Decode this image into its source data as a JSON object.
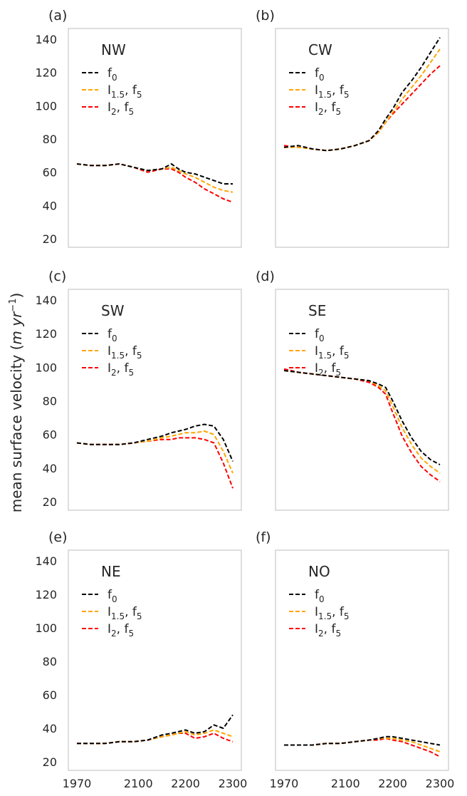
{
  "figure": {
    "ylabel": "mean surface velocity (m yr⁻¹)",
    "ylabel_main": "mean surface velocity (",
    "ylabel_unit": "m yr",
    "ylabel_exp": "−1",
    "ylabel_close": ")"
  },
  "legend": [
    {
      "base": "f",
      "sub": "0",
      "color": "#000000"
    },
    {
      "base": "I",
      "sub": "1.5",
      "mid": ", f",
      "sub2": "5",
      "color": "#ffa500"
    },
    {
      "base": "I",
      "sub": "2",
      "mid": ", f",
      "sub2": "5",
      "color": "#ff0000"
    }
  ],
  "chart_data": [
    {
      "type": "line",
      "panel": "(a)",
      "title": "NW",
      "x": [
        1970,
        2000,
        2030,
        2060,
        2090,
        2120,
        2150,
        2170,
        2185,
        2200,
        2220,
        2240,
        2260,
        2280,
        2300
      ],
      "xlim": [
        1970,
        2300
      ],
      "xticks": [
        1970,
        2100,
        2200,
        2300
      ],
      "ylim": [
        20,
        140
      ],
      "yticks": [
        20,
        40,
        60,
        80,
        100,
        120,
        140
      ],
      "series": [
        {
          "name": "f0",
          "color": "#000000",
          "values": [
            65,
            64,
            64,
            65,
            63,
            61,
            62,
            65,
            62,
            60,
            59,
            57,
            55,
            53,
            53
          ]
        },
        {
          "name": "I1.5, f5",
          "color": "#ffa500",
          "values": [
            65,
            64,
            64,
            65,
            63,
            61,
            62,
            63,
            61,
            59,
            57,
            54,
            51,
            49,
            48
          ]
        },
        {
          "name": "I2, f5",
          "color": "#ff0000",
          "values": [
            65,
            64,
            64,
            65,
            63,
            60,
            62,
            62,
            60,
            57,
            54,
            50,
            47,
            44,
            42
          ]
        }
      ]
    },
    {
      "type": "line",
      "panel": "(b)",
      "title": "CW",
      "x": [
        1970,
        2000,
        2030,
        2060,
        2090,
        2120,
        2150,
        2170,
        2185,
        2200,
        2220,
        2240,
        2260,
        2280,
        2300
      ],
      "xlim": [
        1970,
        2300
      ],
      "xticks": [
        1970,
        2100,
        2200,
        2300
      ],
      "ylim": [
        20,
        140
      ],
      "yticks": [
        20,
        40,
        60,
        80,
        100,
        120,
        140
      ],
      "series": [
        {
          "name": "f0",
          "color": "#000000",
          "values": [
            75,
            76,
            74,
            73,
            74,
            76,
            79,
            85,
            92,
            98,
            108,
            115,
            123,
            132,
            141
          ]
        },
        {
          "name": "I1.5, f5",
          "color": "#ffa500",
          "values": [
            75,
            75,
            74,
            73,
            74,
            76,
            79,
            84,
            90,
            96,
            104,
            111,
            118,
            126,
            134
          ]
        },
        {
          "name": "I2, f5",
          "color": "#ff0000",
          "values": [
            76,
            75,
            74,
            73,
            74,
            76,
            79,
            84,
            90,
            95,
            101,
            107,
            113,
            119,
            124
          ]
        }
      ]
    },
    {
      "type": "line",
      "panel": "(c)",
      "title": "SW",
      "x": [
        1970,
        2000,
        2030,
        2060,
        2090,
        2120,
        2150,
        2170,
        2185,
        2200,
        2220,
        2240,
        2260,
        2280,
        2300
      ],
      "xlim": [
        1970,
        2300
      ],
      "xticks": [
        1970,
        2100,
        2200,
        2300
      ],
      "ylim": [
        20,
        140
      ],
      "yticks": [
        20,
        40,
        60,
        80,
        100,
        120,
        140
      ],
      "series": [
        {
          "name": "f0",
          "color": "#000000",
          "values": [
            55,
            54,
            54,
            54,
            55,
            57,
            59,
            61,
            62,
            63,
            65,
            66,
            65,
            57,
            44
          ]
        },
        {
          "name": "I1.5, f5",
          "color": "#ffa500",
          "values": [
            55,
            54,
            54,
            54,
            55,
            56,
            58,
            59,
            60,
            61,
            61,
            62,
            60,
            50,
            37
          ]
        },
        {
          "name": "I2, f5",
          "color": "#ff0000",
          "values": [
            55,
            54,
            54,
            54,
            55,
            56,
            57,
            57,
            58,
            58,
            58,
            57,
            55,
            43,
            28
          ]
        }
      ]
    },
    {
      "type": "line",
      "panel": "(d)",
      "title": "SE",
      "x": [
        1970,
        2000,
        2030,
        2060,
        2090,
        2120,
        2150,
        2170,
        2185,
        2200,
        2220,
        2240,
        2260,
        2280,
        2300
      ],
      "xlim": [
        1970,
        2300
      ],
      "xticks": [
        1970,
        2100,
        2200,
        2300
      ],
      "ylim": [
        20,
        140
      ],
      "yticks": [
        20,
        40,
        60,
        80,
        100,
        120,
        140
      ],
      "series": [
        {
          "name": "f0",
          "color": "#000000",
          "values": [
            98,
            97,
            96,
            95,
            94,
            93,
            92,
            90,
            88,
            80,
            68,
            58,
            50,
            45,
            42
          ]
        },
        {
          "name": "I1.5, f5",
          "color": "#ffa500",
          "values": [
            98,
            97,
            96,
            95,
            94,
            93,
            92,
            89,
            86,
            77,
            64,
            54,
            46,
            41,
            37
          ]
        },
        {
          "name": "I2, f5",
          "color": "#ff0000",
          "values": [
            99,
            97,
            96,
            95,
            94,
            93,
            91,
            88,
            84,
            73,
            59,
            49,
            41,
            36,
            32
          ]
        }
      ]
    },
    {
      "type": "line",
      "panel": "(e)",
      "title": "NE",
      "x": [
        1970,
        2000,
        2030,
        2060,
        2090,
        2120,
        2150,
        2170,
        2185,
        2200,
        2220,
        2240,
        2260,
        2280,
        2300
      ],
      "xlim": [
        1970,
        2300
      ],
      "xticks": [
        1970,
        2100,
        2200,
        2300
      ],
      "ylim": [
        20,
        140
      ],
      "yticks": [
        20,
        40,
        60,
        80,
        100,
        120,
        140
      ],
      "series": [
        {
          "name": "f0",
          "color": "#000000",
          "values": [
            31,
            31,
            31,
            32,
            32,
            33,
            36,
            37,
            38,
            39,
            37,
            38,
            42,
            40,
            48
          ]
        },
        {
          "name": "I1.5, f5",
          "color": "#ffa500",
          "values": [
            31,
            31,
            31,
            32,
            32,
            33,
            35,
            36,
            37,
            38,
            36,
            37,
            39,
            37,
            35
          ]
        },
        {
          "name": "I2, f5",
          "color": "#ff0000",
          "values": [
            31,
            31,
            31,
            32,
            32,
            33,
            35,
            36,
            37,
            37,
            34,
            35,
            37,
            34,
            32
          ]
        }
      ]
    },
    {
      "type": "line",
      "panel": "(f)",
      "title": "NO",
      "x": [
        1970,
        2000,
        2030,
        2060,
        2090,
        2120,
        2150,
        2170,
        2185,
        2200,
        2220,
        2240,
        2260,
        2280,
        2300
      ],
      "xlim": [
        1970,
        2300
      ],
      "xticks": [
        1970,
        2100,
        2200,
        2300
      ],
      "ylim": [
        20,
        140
      ],
      "yticks": [
        20,
        40,
        60,
        80,
        100,
        120,
        140
      ],
      "series": [
        {
          "name": "f0",
          "color": "#000000",
          "values": [
            30,
            30,
            30,
            31,
            31,
            32,
            33,
            34,
            35,
            35,
            34,
            33,
            32,
            31,
            30
          ]
        },
        {
          "name": "I1.5, f5",
          "color": "#ffa500",
          "values": [
            30,
            30,
            30,
            31,
            31,
            32,
            33,
            34,
            34,
            34,
            33,
            32,
            30,
            28,
            26
          ]
        },
        {
          "name": "I2, f5",
          "color": "#ff0000",
          "values": [
            30,
            30,
            30,
            31,
            31,
            32,
            33,
            33,
            34,
            33,
            32,
            30,
            28,
            26,
            23
          ]
        }
      ]
    }
  ]
}
